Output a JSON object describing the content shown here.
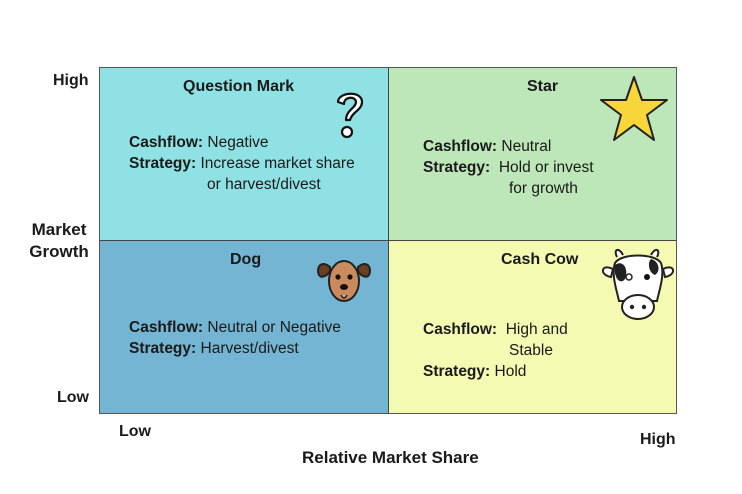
{
  "axes": {
    "y_title_line1": "Market",
    "y_title_line2": "Growth",
    "y_high": "High",
    "y_low": "Low",
    "x_title": "Relative Market Share",
    "x_low": "Low",
    "x_high": "High"
  },
  "quadrants": {
    "question_mark": {
      "title": "Question Mark",
      "cashflow_label": "Cashflow:",
      "cashflow_value": "Negative",
      "strategy_label": "Strategy:",
      "strategy_line1": "Increase market share",
      "strategy_line2": "or harvest/divest",
      "icon": "question-mark-icon",
      "color": "#8fe1e3"
    },
    "star": {
      "title": "Star",
      "cashflow_label": "Cashflow:",
      "cashflow_value": "Neutral",
      "strategy_label": "Strategy:",
      "strategy_line1": "Hold or invest",
      "strategy_line2": "for growth",
      "icon": "star-icon",
      "color": "#bde7b9"
    },
    "dog": {
      "title": "Dog",
      "cashflow_label": "Cashflow:",
      "cashflow_value": "Neutral or Negative",
      "strategy_label": "Strategy:",
      "strategy_line1": "Harvest/divest",
      "icon": "dog-icon",
      "color": "#73b5d3"
    },
    "cash_cow": {
      "title": "Cash Cow",
      "cashflow_label": "Cashflow:",
      "cashflow_line1": "High and",
      "cashflow_line2": "Stable",
      "strategy_label": "Strategy:",
      "strategy_value": "Hold",
      "icon": "cow-icon",
      "color": "#f4fab2"
    }
  }
}
